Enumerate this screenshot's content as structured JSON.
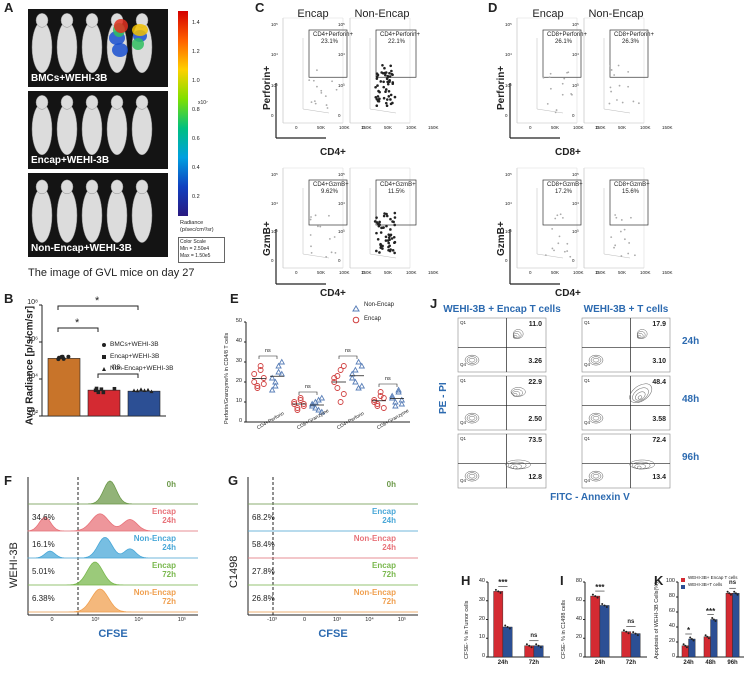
{
  "panelA": {
    "label": "A",
    "rows": [
      "BMCs+WEHI-3B",
      "Encap+WEHI-3B",
      "Non-Encap+WEHI-3B"
    ],
    "colorbar_ticks": [
      "1.4",
      "1.2",
      "1.0",
      "0.8",
      "0.6",
      "0.4",
      "0.2"
    ],
    "colorbar_unit": "x10⁷",
    "radiance_label": "Radiance",
    "radiance_units": "(p/sec/cm²/sr)",
    "color_scale": [
      "Color Scale",
      "Min = 2.50e4",
      "Max = 1.50e5"
    ],
    "caption": "The image of GVL mice on day 27"
  },
  "panelB": {
    "label": "B",
    "chart_data": {
      "type": "bar",
      "categories": [
        "BMCs+WEHI-3B",
        "Encap+WEHI-3B",
        "Non-Encap+WEHI-3B"
      ],
      "values": [
        130000,
        2500,
        2200
      ],
      "colors": [
        "#c8742a",
        "#d42a32",
        "#2c4f94"
      ],
      "ylabel": "Avg Radiance [p/s/cm/sr]",
      "yticks": [
        "10⁸",
        "10⁶",
        "10⁴",
        "10²"
      ],
      "ylim": [
        100,
        100000000
      ],
      "yscale": "log",
      "legend": [
        "BMCs+WEHI-3B",
        "Encap+WEHI-3B",
        "Non-Encap+WEHI-3B"
      ],
      "sig": [
        "*",
        "*",
        "ns"
      ]
    }
  },
  "panelC": {
    "label": "C",
    "cols": [
      "Encap",
      "Non-Encap"
    ],
    "top_gates": [
      "CD4+Perforin+\n23.1%",
      "CD4+Perforin+\n22.1%"
    ],
    "bottom_gates": [
      "CD4+GzmB+\n9.62%",
      "CD4+GzmB+\n11.5%"
    ],
    "ylabel_top": "Perforin+",
    "ylabel_bottom": "GzmB+",
    "xlabel": "CD4+",
    "xticks": [
      "0",
      "50K",
      "100K",
      "150K"
    ]
  },
  "panelD": {
    "label": "D",
    "cols": [
      "Encap",
      "Non-Encap"
    ],
    "top_gates": [
      "CD8+Perforin+\n26.1%",
      "CD8+Perforin+\n26.3%"
    ],
    "bottom_gates": [
      "CD8+GzmB+\n17.2%",
      "CD8+GzmB+\n15.6%"
    ],
    "ylabel_top": "Perforin+",
    "ylabel_bottom": "GzmB+",
    "xlabel_top": "CD8+",
    "xlabel_bottom": "CD4+",
    "xticks": [
      "0",
      "50K",
      "100K",
      "150K"
    ]
  },
  "panelE": {
    "label": "E",
    "chart_data": {
      "type": "scatter",
      "categories": [
        "CD4+Perforin",
        "CD8+Granzyme",
        "CD4+Perforin",
        "CD8+Granzyme"
      ],
      "ylabel": "Perforin/Granzyme% in CD4/8 T cells",
      "yticks": [
        "0",
        "10",
        "20",
        "30",
        "40",
        "50"
      ],
      "ylim": [
        0,
        50
      ],
      "series": [
        {
          "name": "Non-Encap",
          "color": "#5a7fb8",
          "values": [
            [
              22,
              18,
              25,
              30,
              16,
              20,
              28,
              24
            ],
            [
              8,
              10,
              6,
              12,
              9,
              7,
              11,
              5
            ],
            [
              24,
              20,
              30,
              18,
              22,
              26,
              17,
              28
            ],
            [
              13,
              10,
              15,
              9,
              12,
              8,
              16,
              11
            ]
          ]
        },
        {
          "name": "Encap",
          "color": "#d04040",
          "values": [
            [
              20,
              18,
              26,
              22,
              24,
              17,
              28,
              19
            ],
            [
              9,
              7,
              11,
              8,
              10,
              6,
              12,
              9
            ],
            [
              22,
              17,
              26,
              14,
              20,
              23,
              10,
              28
            ],
            [
              11,
              9,
              13,
              7,
              10,
              8,
              15,
              12
            ]
          ]
        }
      ],
      "sig": [
        "ns",
        "ns",
        "ns",
        "ns"
      ]
    }
  },
  "panelF": {
    "label": "F",
    "ylabel": "WEHI-3B",
    "xlabel": "CFSE",
    "xticks": [
      "0",
      "10³",
      "10⁴",
      "10⁵"
    ],
    "rows": [
      {
        "pct": "",
        "name": "0h",
        "color": "#6d9a4b"
      },
      {
        "pct": "34.6%",
        "name": "Encap\n24h",
        "color": "#e8737a"
      },
      {
        "pct": "16.1%",
        "name": "Non-Encap\n24h",
        "color": "#4aa8d8"
      },
      {
        "pct": "5.01%",
        "name": "Encap\n72h",
        "color": "#7ab84e"
      },
      {
        "pct": "6.38%",
        "name": "Non-Encap\n72h",
        "color": "#f0a050"
      }
    ]
  },
  "panelG": {
    "label": "G",
    "ylabel": "C1498",
    "xlabel": "CFSE",
    "xticks": [
      "-10³",
      "0",
      "10³",
      "10⁴",
      "10⁵"
    ],
    "rows": [
      {
        "pct": "",
        "name": "0h",
        "color": "#6d9a4b"
      },
      {
        "pct": "68.2%",
        "name": "Encap\n24h",
        "color": "#4aa8d8"
      },
      {
        "pct": "58.4%",
        "name": "Non-Encap\n24h",
        "color": "#e8737a"
      },
      {
        "pct": "27.8%",
        "name": "Encap\n72h",
        "color": "#7ab84e"
      },
      {
        "pct": "26.8%",
        "name": "Non-Encap\n72h",
        "color": "#f0a050"
      }
    ]
  },
  "panelH": {
    "label": "H",
    "chart_data": {
      "type": "bar",
      "categories": [
        "24h",
        "72h"
      ],
      "series": [
        {
          "name": "Encap",
          "values": [
            35,
            6
          ]
        },
        {
          "name": "Non-Encap",
          "values": [
            16,
            6
          ]
        }
      ],
      "ylabel": "CFSE- % in Tumor cells",
      "yticks": [
        "0",
        "10",
        "20",
        "30",
        "40"
      ],
      "ylim": [
        0,
        40
      ],
      "sig": [
        "***",
        "ns"
      ]
    }
  },
  "panelI": {
    "label": "I",
    "chart_data": {
      "type": "bar",
      "categories": [
        "24h",
        "72h"
      ],
      "series": [
        {
          "name": "Encap",
          "values": [
            65,
            27
          ]
        },
        {
          "name": "Non-Encap",
          "values": [
            55,
            25
          ]
        }
      ],
      "ylabel": "CFSE- % in C1498 cells",
      "yticks": [
        "0",
        "20",
        "40",
        "60",
        "80"
      ],
      "ylim": [
        0,
        80
      ],
      "sig": [
        "***",
        "ns"
      ]
    }
  },
  "panelJ": {
    "label": "J",
    "col_titles": [
      "WEHI-3B + Encap T cells",
      "WEHI-3B + T cells"
    ],
    "row_labels": [
      "24h",
      "48h",
      "96h"
    ],
    "ylabel": "PE - PI",
    "xlabel": "FITC - Annexin V",
    "q2": [
      [
        "11.0",
        "17.9"
      ],
      [
        "22.9",
        "48.4"
      ],
      [
        "73.5",
        "72.4"
      ]
    ],
    "q3": [
      [
        "3.26",
        "3.10"
      ],
      [
        "2.50",
        "3.58"
      ],
      [
        "12.8",
        "13.4"
      ]
    ],
    "q1": [
      [
        "Q1",
        "Q1"
      ],
      [
        "Q1",
        "Q1"
      ],
      [
        "Q1",
        "Q1"
      ]
    ],
    "q4": [
      [
        "Q4",
        "Q4"
      ],
      [
        "Q4",
        "Q4"
      ],
      [
        "Q4",
        "Q4"
      ]
    ]
  },
  "panelK": {
    "label": "K",
    "chart_data": {
      "type": "bar",
      "categories": [
        "24h",
        "48h",
        "96h"
      ],
      "series": [
        {
          "name": "WEHI-3B+ Encap T cells",
          "values": [
            15,
            27,
            85
          ]
        },
        {
          "name": "WEHI-3B+T cells",
          "values": [
            24,
            50,
            85
          ]
        }
      ],
      "ylabel": "Apoptosis of WEHI-3B Cells(%)",
      "yticks": [
        "0",
        "20",
        "40",
        "60",
        "80",
        "100"
      ],
      "ylim": [
        0,
        100
      ],
      "sig": [
        "*",
        "***",
        "ns"
      ]
    }
  }
}
